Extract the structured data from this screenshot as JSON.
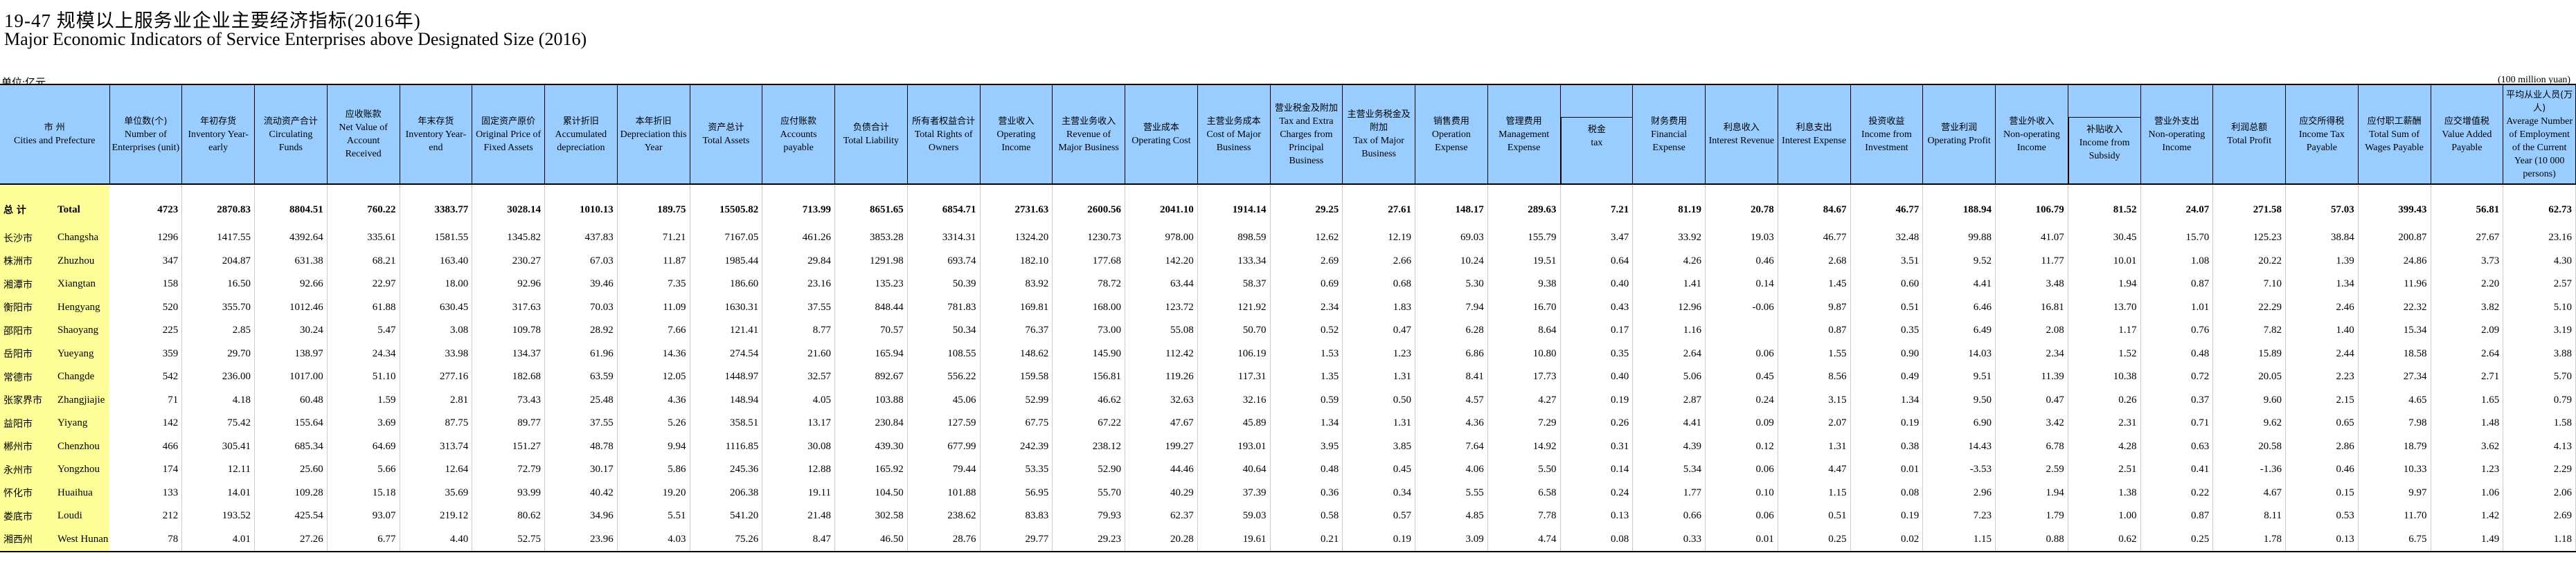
{
  "title": {
    "cn": "19-47   规模以上服务业企业主要经济指标(2016年)",
    "en": "Major Economic Indicators of Service Enterprises above  Designated Size (2016)"
  },
  "unit": {
    "cn": "单位:亿元",
    "en": "(100 million yuan)"
  },
  "columns": [
    {
      "cn": "市 州",
      "en": "Cities and Prefecture"
    },
    {
      "cn": "单位数(个)",
      "en": "Number of Enterprises (unit)"
    },
    {
      "cn": "年初存货",
      "en": "Inventory Year-early"
    },
    {
      "cn": "流动资产合计",
      "en": "Circulating Funds"
    },
    {
      "cn": "应收账款",
      "en": "Net Value of Account Received"
    },
    {
      "cn": "年末存货",
      "en": "Inventory Year-end"
    },
    {
      "cn": "固定资产原价",
      "en": "Original Price of Fixed Assets"
    },
    {
      "cn": "累计折旧",
      "en": "Accumulated depreciation"
    },
    {
      "cn": "本年折旧",
      "en": "Depreciation this Year"
    },
    {
      "cn": "资产总计",
      "en": "Total Assets"
    },
    {
      "cn": "应付账款",
      "en": "Accounts payable"
    },
    {
      "cn": "负债合计",
      "en": "Total Liability"
    },
    {
      "cn": "所有者权益合计",
      "en": "Total Rights of Owners"
    },
    {
      "cn": "营业收入",
      "en": "Operating Income"
    },
    {
      "cn": "主营业务收入",
      "en": "Revenue of Major Business"
    },
    {
      "cn": "营业成本",
      "en": "Operating Cost"
    },
    {
      "cn": "主营业务成本",
      "en": "Cost of Major Business"
    },
    {
      "cn": "营业税金及附加",
      "en": "Tax and Extra Charges from Principal Business"
    },
    {
      "cn": "主营业务税金及附加",
      "en": "Tax of Major Business"
    },
    {
      "cn": "销售费用",
      "en": "Operation Expense"
    },
    {
      "cn": "管理费用",
      "en": "Management Expense"
    },
    {
      "cn": "税金",
      "en": "tax",
      "sub": true
    },
    {
      "cn": "财务费用",
      "en": "Financial Expense"
    },
    {
      "cn": "利息收入",
      "en": "Interest Revenue"
    },
    {
      "cn": "利息支出",
      "en": "Interest Expense"
    },
    {
      "cn": "投资收益",
      "en": "Income from Investment"
    },
    {
      "cn": "营业利润",
      "en": "Operating Profit"
    },
    {
      "cn": "营业外收入",
      "en": "Non-operating Income"
    },
    {
      "cn": "补贴收入",
      "en": "Income from Subsidy",
      "sub": true
    },
    {
      "cn": "营业外支出",
      "en": "Non-operating Income"
    },
    {
      "cn": "利润总额",
      "en": "Total Profit"
    },
    {
      "cn": "应交所得税",
      "en": "Income Tax Payable"
    },
    {
      "cn": "应付职工薪酬",
      "en": "Total Sum of Wages Payable"
    },
    {
      "cn": "应交增值税",
      "en": "Value Added Payable"
    },
    {
      "cn": "平均从业人员(万人)",
      "en": "Average Number of Employment of the Current Year (10 000 persons)"
    }
  ],
  "rows": [
    {
      "cn": "总  计",
      "en": "Total",
      "total": true,
      "values": [
        "4723",
        "2870.83",
        "8804.51",
        "760.22",
        "3383.77",
        "3028.14",
        "1010.13",
        "189.75",
        "15505.82",
        "713.99",
        "8651.65",
        "6854.71",
        "2731.63",
        "2600.56",
        "2041.10",
        "1914.14",
        "29.25",
        "27.61",
        "148.17",
        "289.63",
        "7.21",
        "81.19",
        "20.78",
        "84.67",
        "46.77",
        "188.94",
        "106.79",
        "81.52",
        "24.07",
        "271.58",
        "57.03",
        "399.43",
        "56.81",
        "62.73"
      ]
    },
    {
      "cn": "长沙市",
      "en": "Changsha",
      "values": [
        "1296",
        "1417.55",
        "4392.64",
        "335.61",
        "1581.55",
        "1345.82",
        "437.83",
        "71.21",
        "7167.05",
        "461.26",
        "3853.28",
        "3314.31",
        "1324.20",
        "1230.73",
        "978.00",
        "898.59",
        "12.62",
        "12.19",
        "69.03",
        "155.79",
        "3.47",
        "33.92",
        "19.03",
        "46.77",
        "32.48",
        "99.88",
        "41.07",
        "30.45",
        "15.70",
        "125.23",
        "38.84",
        "200.87",
        "27.67",
        "23.16"
      ]
    },
    {
      "cn": "株洲市",
      "en": "Zhuzhou",
      "values": [
        "347",
        "204.87",
        "631.38",
        "68.21",
        "163.40",
        "230.27",
        "67.03",
        "11.87",
        "1985.44",
        "29.84",
        "1291.98",
        "693.74",
        "182.10",
        "177.68",
        "142.20",
        "133.34",
        "2.69",
        "2.66",
        "10.24",
        "19.51",
        "0.64",
        "4.26",
        "0.46",
        "2.68",
        "3.51",
        "9.52",
        "11.77",
        "10.01",
        "1.08",
        "20.22",
        "1.39",
        "24.86",
        "3.73",
        "4.30"
      ]
    },
    {
      "cn": "湘潭市",
      "en": "Xiangtan",
      "values": [
        "158",
        "16.50",
        "92.66",
        "22.97",
        "18.00",
        "92.96",
        "39.46",
        "7.35",
        "186.60",
        "23.16",
        "135.23",
        "50.39",
        "83.92",
        "78.72",
        "63.44",
        "58.37",
        "0.69",
        "0.68",
        "5.30",
        "9.38",
        "0.40",
        "1.41",
        "0.14",
        "1.45",
        "0.60",
        "4.41",
        "3.48",
        "1.94",
        "0.87",
        "7.10",
        "1.34",
        "11.96",
        "2.20",
        "2.57"
      ]
    },
    {
      "cn": "衡阳市",
      "en": "Hengyang",
      "values": [
        "520",
        "355.70",
        "1012.46",
        "61.88",
        "630.45",
        "317.63",
        "70.03",
        "11.09",
        "1630.31",
        "37.55",
        "848.44",
        "781.83",
        "169.81",
        "168.00",
        "123.72",
        "121.92",
        "2.34",
        "1.83",
        "7.94",
        "16.70",
        "0.43",
        "12.96",
        "-0.06",
        "9.87",
        "0.51",
        "6.46",
        "16.81",
        "13.70",
        "1.01",
        "22.29",
        "2.46",
        "22.32",
        "3.82",
        "5.10"
      ]
    },
    {
      "cn": "邵阳市",
      "en": "Shaoyang",
      "values": [
        "225",
        "2.85",
        "30.24",
        "5.47",
        "3.08",
        "109.78",
        "28.92",
        "7.66",
        "121.41",
        "8.77",
        "70.57",
        "50.34",
        "76.37",
        "73.00",
        "55.08",
        "50.70",
        "0.52",
        "0.47",
        "6.28",
        "8.64",
        "0.17",
        "1.16",
        "",
        "0.87",
        "0.35",
        "6.49",
        "2.08",
        "1.17",
        "0.76",
        "7.82",
        "1.40",
        "15.34",
        "2.09",
        "3.19"
      ]
    },
    {
      "cn": "岳阳市",
      "en": "Yueyang",
      "values": [
        "359",
        "29.70",
        "138.97",
        "24.34",
        "33.98",
        "134.37",
        "61.96",
        "14.36",
        "274.54",
        "21.60",
        "165.94",
        "108.55",
        "148.62",
        "145.90",
        "112.42",
        "106.19",
        "1.53",
        "1.23",
        "6.86",
        "10.80",
        "0.35",
        "2.64",
        "0.06",
        "1.55",
        "0.90",
        "14.03",
        "2.34",
        "1.52",
        "0.48",
        "15.89",
        "2.44",
        "18.58",
        "2.64",
        "3.88"
      ]
    },
    {
      "cn": "常德市",
      "en": "Changde",
      "values": [
        "542",
        "236.00",
        "1017.00",
        "51.10",
        "277.16",
        "182.68",
        "63.59",
        "12.05",
        "1448.97",
        "32.57",
        "892.67",
        "556.22",
        "159.58",
        "156.81",
        "119.26",
        "117.31",
        "1.35",
        "1.31",
        "8.41",
        "17.73",
        "0.40",
        "5.06",
        "0.45",
        "8.56",
        "0.49",
        "9.51",
        "11.39",
        "10.38",
        "0.72",
        "20.05",
        "2.23",
        "27.34",
        "2.71",
        "5.70"
      ]
    },
    {
      "cn": "张家界市",
      "en": "Zhangjiajie",
      "values": [
        "71",
        "4.18",
        "60.48",
        "1.59",
        "2.81",
        "73.43",
        "25.48",
        "4.36",
        "148.94",
        "4.05",
        "103.88",
        "45.06",
        "52.99",
        "46.62",
        "32.63",
        "32.16",
        "0.59",
        "0.50",
        "4.57",
        "4.27",
        "0.19",
        "2.87",
        "0.24",
        "3.15",
        "1.34",
        "9.50",
        "0.47",
        "0.26",
        "0.37",
        "9.60",
        "2.15",
        "4.65",
        "1.65",
        "0.79"
      ]
    },
    {
      "cn": "益阳市",
      "en": "Yiyang",
      "values": [
        "142",
        "75.42",
        "155.64",
        "3.69",
        "87.75",
        "89.77",
        "37.55",
        "5.26",
        "358.51",
        "13.17",
        "230.84",
        "127.59",
        "67.75",
        "67.22",
        "47.67",
        "45.89",
        "1.34",
        "1.31",
        "4.36",
        "7.29",
        "0.26",
        "4.41",
        "0.09",
        "2.07",
        "0.19",
        "6.90",
        "3.42",
        "2.31",
        "0.71",
        "9.62",
        "0.65",
        "7.98",
        "1.48",
        "1.58"
      ]
    },
    {
      "cn": "郴州市",
      "en": "Chenzhou",
      "values": [
        "466",
        "305.41",
        "685.34",
        "64.69",
        "313.74",
        "151.27",
        "48.78",
        "9.94",
        "1116.85",
        "30.08",
        "439.30",
        "677.99",
        "242.39",
        "238.12",
        "199.27",
        "193.01",
        "3.95",
        "3.85",
        "7.64",
        "14.92",
        "0.31",
        "4.39",
        "0.12",
        "1.31",
        "0.38",
        "14.43",
        "6.78",
        "4.28",
        "0.63",
        "20.58",
        "2.86",
        "18.79",
        "3.62",
        "4.13"
      ]
    },
    {
      "cn": "永州市",
      "en": "Yongzhou",
      "values": [
        "174",
        "12.11",
        "25.60",
        "5.66",
        "12.64",
        "72.79",
        "30.17",
        "5.86",
        "245.36",
        "12.88",
        "165.92",
        "79.44",
        "53.35",
        "52.90",
        "44.46",
        "40.64",
        "0.48",
        "0.45",
        "4.06",
        "5.50",
        "0.14",
        "5.34",
        "0.06",
        "4.47",
        "0.01",
        "-3.53",
        "2.59",
        "2.51",
        "0.41",
        "-1.36",
        "0.46",
        "10.33",
        "1.23",
        "2.29"
      ]
    },
    {
      "cn": "怀化市",
      "en": "Huaihua",
      "values": [
        "133",
        "14.01",
        "109.28",
        "15.18",
        "35.69",
        "93.99",
        "40.42",
        "19.20",
        "206.38",
        "19.11",
        "104.50",
        "101.88",
        "56.95",
        "55.70",
        "40.29",
        "37.39",
        "0.36",
        "0.34",
        "5.55",
        "6.58",
        "0.24",
        "1.77",
        "0.10",
        "1.15",
        "0.08",
        "2.96",
        "1.94",
        "1.38",
        "0.22",
        "4.67",
        "0.15",
        "9.97",
        "1.06",
        "2.06"
      ]
    },
    {
      "cn": "娄底市",
      "en": "Loudi",
      "values": [
        "212",
        "193.52",
        "425.54",
        "93.07",
        "219.12",
        "80.62",
        "34.96",
        "5.51",
        "541.20",
        "21.48",
        "302.58",
        "238.62",
        "83.83",
        "79.93",
        "62.37",
        "59.03",
        "0.58",
        "0.57",
        "4.85",
        "7.78",
        "0.13",
        "0.66",
        "0.06",
        "0.51",
        "0.19",
        "7.23",
        "1.79",
        "1.00",
        "0.87",
        "8.11",
        "0.53",
        "11.70",
        "1.42",
        "2.69"
      ]
    },
    {
      "cn": "湘西州",
      "en": "West Hunan",
      "values": [
        "78",
        "4.01",
        "27.26",
        "6.77",
        "4.40",
        "52.75",
        "23.96",
        "4.03",
        "75.26",
        "8.47",
        "46.50",
        "28.76",
        "29.77",
        "29.23",
        "20.28",
        "19.61",
        "0.21",
        "0.19",
        "3.09",
        "4.74",
        "0.08",
        "0.33",
        "0.01",
        "0.25",
        "0.02",
        "1.15",
        "0.88",
        "0.62",
        "0.25",
        "1.78",
        "0.13",
        "6.75",
        "1.49",
        "1.18"
      ]
    }
  ]
}
